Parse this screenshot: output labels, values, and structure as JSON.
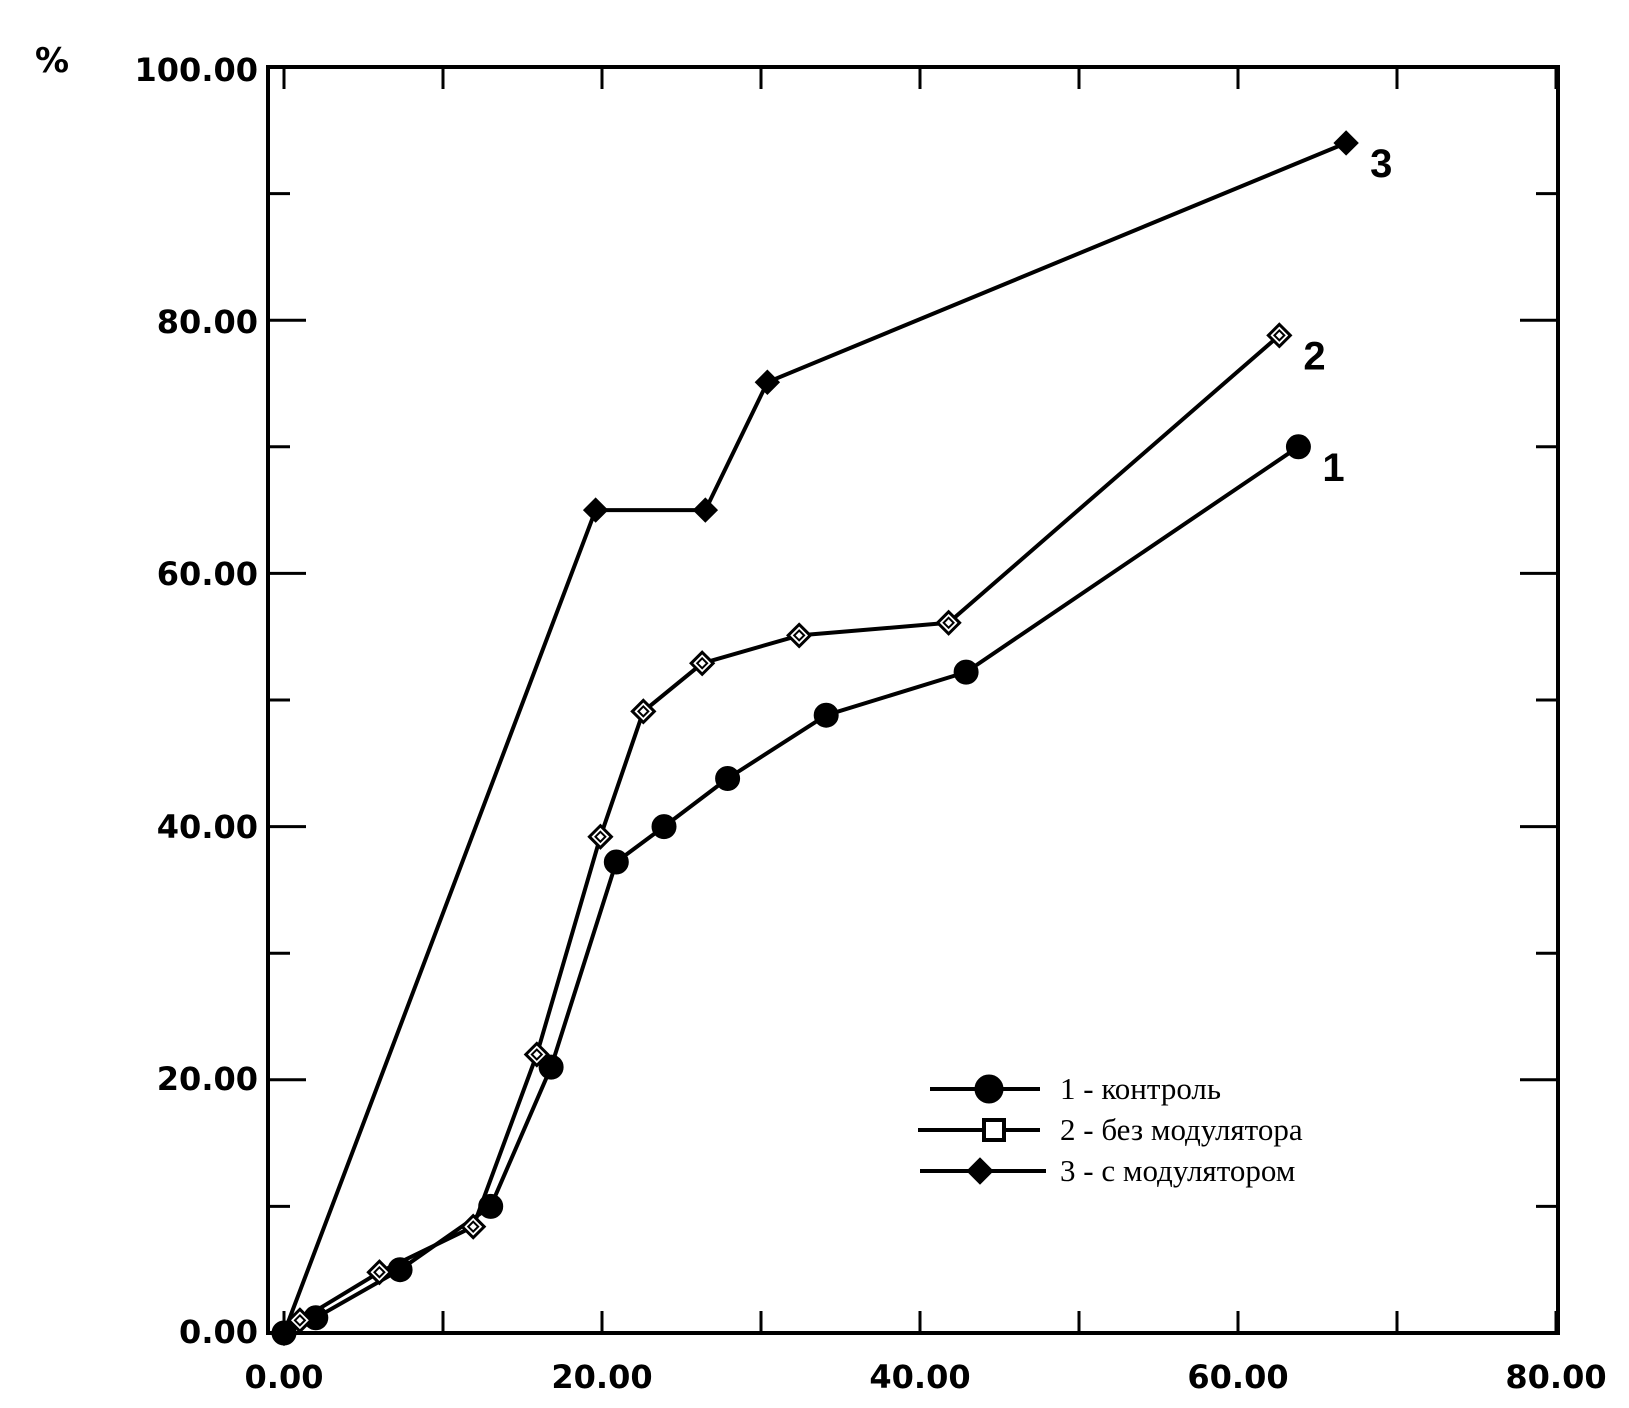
{
  "chart_data": {
    "type": "line",
    "unit": "%",
    "xlim": [
      0,
      80
    ],
    "ylim": [
      0,
      100
    ],
    "x_ticks": [
      "0.00",
      "20.00",
      "40.00",
      "60.00",
      "80.00"
    ],
    "y_ticks": [
      "0.00",
      "20.00",
      "40.00",
      "60.00",
      "80.00",
      "100.00"
    ],
    "grid": false,
    "legend_position": "bottom-right",
    "series": [
      {
        "name": "1 - контроль",
        "end_label": "1",
        "marker": "circle",
        "x": [
          0,
          2,
          7.3,
          13,
          16.8,
          20.9,
          23.9,
          27.9,
          34.1,
          42.9,
          63.8
        ],
        "y": [
          0,
          1.2,
          5.0,
          10.0,
          21.0,
          37.2,
          40.0,
          43.8,
          48.8,
          52.2,
          70.0
        ]
      },
      {
        "name": "2 - без модулятора",
        "end_label": "2",
        "marker": "hollow-diamond",
        "x": [
          0,
          1,
          6,
          11.9,
          15.9,
          19.9,
          22.6,
          26.3,
          32.4,
          41.8,
          62.6
        ],
        "y": [
          0,
          1.0,
          4.8,
          8.4,
          22.0,
          39.2,
          49.1,
          52.9,
          55.1,
          56.1,
          78.8
        ]
      },
      {
        "name": "3 - с модулятором",
        "end_label": "3",
        "marker": "filled-diamond",
        "x": [
          0,
          19.6,
          26.5,
          30.4,
          66.8
        ],
        "y": [
          0,
          65.0,
          65.0,
          75.1,
          94.0
        ]
      }
    ]
  }
}
